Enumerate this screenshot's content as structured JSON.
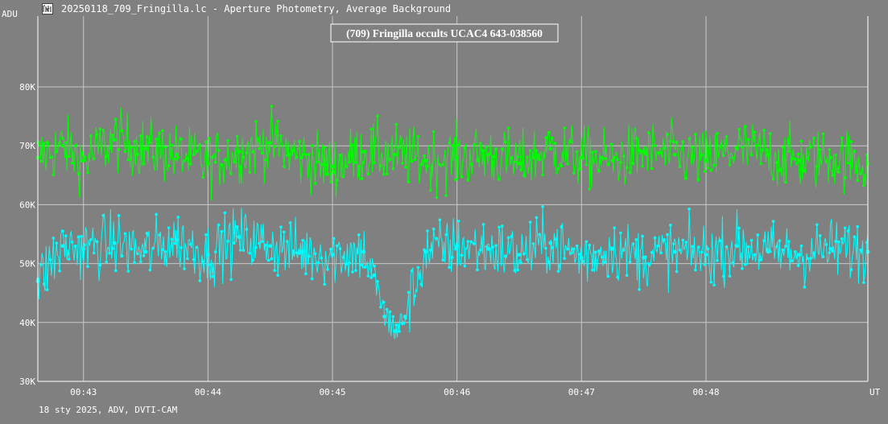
{
  "window": {
    "title": "20250118_709_Fringilla.lc - Aperture Photometry, Average Background",
    "icon": "light-curve-app-icon"
  },
  "footer": {
    "text": "18 sty 2025, ADV, DVTI-CAM"
  },
  "colors": {
    "background": "#808080",
    "grid": "#c8c8c8",
    "axis": "#ffffff",
    "target_series": "#00ff00",
    "comparison_series": "#00ffff"
  },
  "chart_data": {
    "type": "line",
    "title": "(709) Fringilla occults UCAC4 643-038560",
    "ylabel": "ADU",
    "xlabel": "UT",
    "ylim": [
      30000,
      80000
    ],
    "yticks": [
      30000,
      40000,
      50000,
      60000,
      70000,
      80000
    ],
    "ytick_labels": [
      "30K",
      "40K",
      "50K",
      "60K",
      "70K",
      "80K"
    ],
    "xlim": [
      "00:42:38",
      "00:49:18"
    ],
    "xticks": [
      "00:43:00",
      "00:44:00",
      "00:45:00",
      "00:46:00",
      "00:47:00",
      "00:48:00"
    ],
    "xtick_labels": [
      "00:43",
      "00:44",
      "00:45",
      "00:46",
      "00:47",
      "00:48"
    ],
    "grid": true,
    "markers": true,
    "series": [
      {
        "color": "#00ff00",
        "x": [
          "00:42:38",
          "00:42:50",
          "00:43:00",
          "00:43:15",
          "00:43:30",
          "00:43:45",
          "00:44:00",
          "00:44:15",
          "00:44:30",
          "00:44:45",
          "00:45:00",
          "00:45:15",
          "00:45:30",
          "00:45:45",
          "00:46:00",
          "00:46:15",
          "00:46:30",
          "00:46:45",
          "00:47:00",
          "00:47:15",
          "00:47:30",
          "00:47:45",
          "00:48:00",
          "00:48:15",
          "00:48:30",
          "00:48:45",
          "00:49:00",
          "00:49:18"
        ],
        "values": [
          68000,
          70000,
          67500,
          71000,
          69500,
          68500,
          67000,
          69000,
          70500,
          68000,
          66500,
          69000,
          68500,
          67500,
          68000,
          68500,
          67000,
          69500,
          68000,
          67500,
          69000,
          68500,
          67500,
          69500,
          68500,
          67500,
          68000,
          67000
        ]
      },
      {
        "color": "#00ffff",
        "x": [
          "00:42:38",
          "00:42:50",
          "00:43:00",
          "00:43:15",
          "00:43:30",
          "00:43:45",
          "00:44:00",
          "00:44:15",
          "00:44:30",
          "00:44:45",
          "00:45:00",
          "00:45:15",
          "00:45:20",
          "00:45:25",
          "00:45:30",
          "00:45:35",
          "00:45:45",
          "00:46:00",
          "00:46:15",
          "00:46:30",
          "00:46:45",
          "00:47:00",
          "00:47:15",
          "00:47:30",
          "00:47:45",
          "00:48:00",
          "00:48:15",
          "00:48:30",
          "00:48:45",
          "00:49:00",
          "00:49:18"
        ],
        "values": [
          47000,
          53000,
          52500,
          53500,
          52000,
          54000,
          51500,
          54500,
          53000,
          52000,
          51500,
          52000,
          48000,
          41000,
          38500,
          41000,
          52000,
          53000,
          52500,
          51500,
          53500,
          51000,
          52500,
          51000,
          52000,
          51500,
          53000,
          52000,
          51500,
          52500,
          52000
        ]
      }
    ]
  }
}
